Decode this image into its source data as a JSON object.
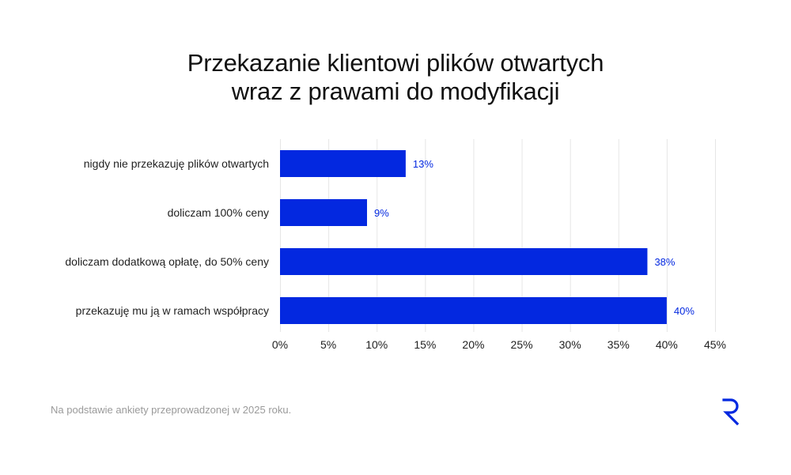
{
  "title_lines": [
    "Przekazanie klientowi plików otwartych",
    "wraz z prawami do modyfikacji"
  ],
  "footnote": "Na podstawie ankiety przeprowadzonej w 2025 roku.",
  "colors": {
    "bar": "#0328E0",
    "label": "#0328E0",
    "grid": "#e6e6e6",
    "text": "#222222"
  },
  "logo_icon": "r-logo-icon",
  "chart_data": {
    "type": "bar",
    "orientation": "horizontal",
    "categories": [
      "nigdy nie przekazuję plików otwartych",
      "doliczam 100% ceny",
      "doliczam dodatkową opłatę, do 50% ceny",
      "przekazuję mu ją w ramach współpracy"
    ],
    "values": [
      13,
      9,
      38,
      40
    ],
    "value_labels": [
      "13%",
      "9%",
      "38%",
      "40%"
    ],
    "x_ticks": [
      0,
      5,
      10,
      15,
      20,
      25,
      30,
      35,
      40,
      45
    ],
    "x_tick_labels": [
      "0%",
      "5%",
      "10%",
      "15%",
      "20%",
      "25%",
      "30%",
      "35%",
      "40%",
      "45%"
    ],
    "xlim": [
      0,
      45
    ],
    "grid": "vertical",
    "legend": "none"
  }
}
